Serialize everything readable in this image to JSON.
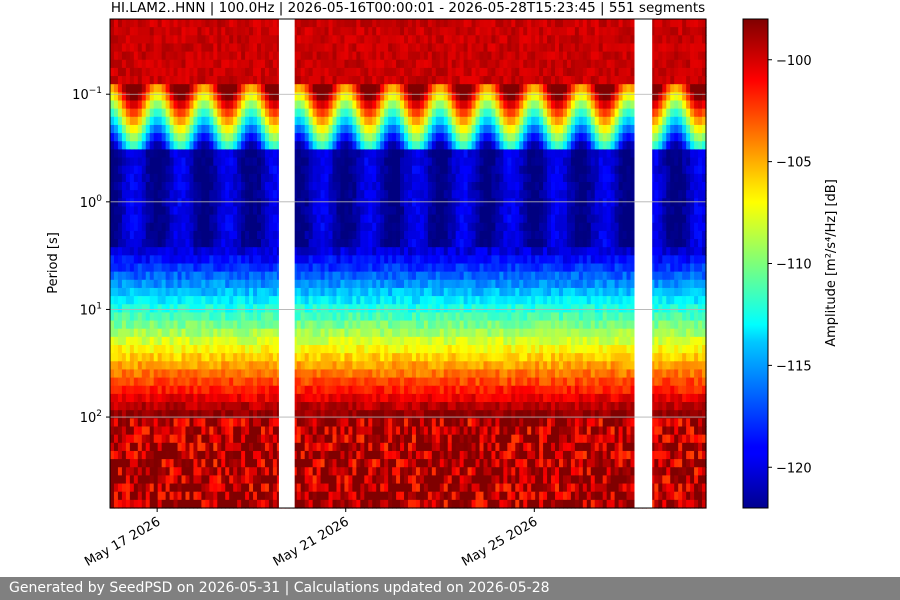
{
  "chart_data": {
    "type": "heatmap",
    "title": "HI.LAM2..HNN | 100.0Hz | 2026-05-16T00:00:01 - 2026-05-28T15:23:45 | 551 segments",
    "ylabel": "Period [s]",
    "colorbar_label": "Amplitude [m²/s⁴/Hz] [dB]",
    "x_start": "2026-05-16T00:00:01",
    "x_end": "2026-05-28T15:23:45",
    "x_ticks": [
      {
        "date": "2026-05-17",
        "label": "May 17 2026"
      },
      {
        "date": "2026-05-21",
        "label": "May 21 2026"
      },
      {
        "date": "2026-05-25",
        "label": "May 25 2026"
      }
    ],
    "yscale": "log",
    "y_inverted": true,
    "ylim": [
      0.02,
      700
    ],
    "y_ticks": [
      {
        "value": 0.1,
        "base": "10",
        "exp": "−1"
      },
      {
        "value": 1,
        "base": "10",
        "exp": "0"
      },
      {
        "value": 10,
        "base": "10",
        "exp": "1"
      },
      {
        "value": 100,
        "base": "10",
        "exp": "2"
      }
    ],
    "grid": true,
    "colormap": "jet",
    "clim": [
      -122,
      -98
    ],
    "colorbar_ticks": [
      -100,
      -105,
      -110,
      -115,
      -120
    ],
    "gaps": [
      {
        "start": "2026-05-19T14:00:00",
        "end": "2026-05-19T22:00:00"
      },
      {
        "start": "2026-05-27T03:00:00",
        "end": "2026-05-27T12:00:00"
      }
    ],
    "segments": 551
  },
  "footer": {
    "text": "Generated by SeedPSD on 2026-05-31 | Calculations updated on 2026-05-28"
  }
}
